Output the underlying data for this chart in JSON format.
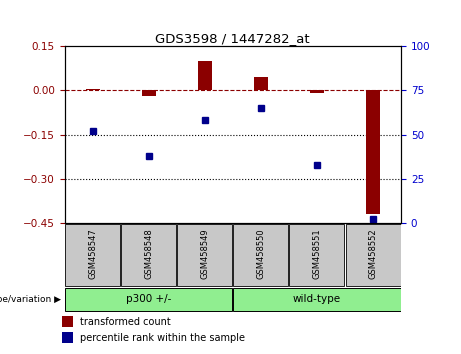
{
  "title": "GDS3598 / 1447282_at",
  "samples": [
    "GSM458547",
    "GSM458548",
    "GSM458549",
    "GSM458550",
    "GSM458551",
    "GSM458552"
  ],
  "transformed_counts": [
    0.005,
    -0.02,
    0.1,
    0.045,
    -0.01,
    -0.42
  ],
  "percentile_ranks": [
    52,
    38,
    58,
    65,
    33,
    2
  ],
  "group_labels": [
    "p300 +/-",
    "wild-type"
  ],
  "group_ranges": [
    [
      0,
      3
    ],
    [
      3,
      6
    ]
  ],
  "group_color": "#90EE90",
  "bar_color": "#8B0000",
  "dot_color": "#00008B",
  "ylim_left": [
    -0.45,
    0.15
  ],
  "ylim_right": [
    0,
    100
  ],
  "yticks_left": [
    0.15,
    0.0,
    -0.15,
    -0.3,
    -0.45
  ],
  "yticks_right": [
    100,
    75,
    50,
    25,
    0
  ],
  "dotted_lines": [
    -0.15,
    -0.3
  ],
  "legend_labels": [
    "transformed count",
    "percentile rank within the sample"
  ],
  "legend_colors": [
    "#8B0000",
    "#00008B"
  ],
  "sample_box_color": "#C8C8C8",
  "genotype_label": "genotype/variation",
  "bar_width": 0.25
}
